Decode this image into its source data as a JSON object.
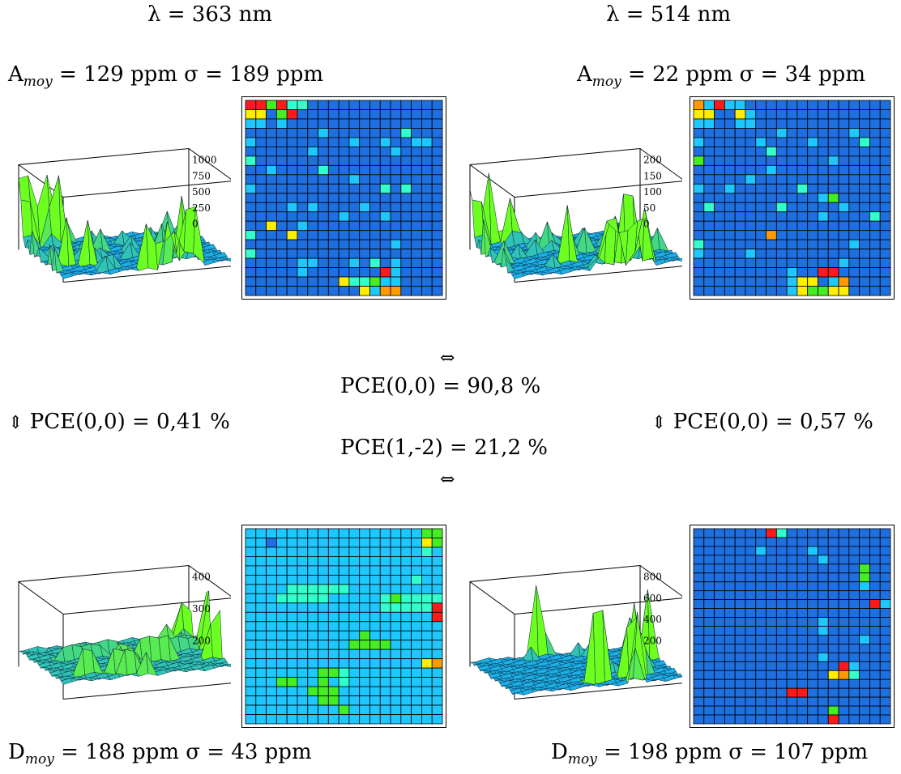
{
  "labels": {
    "lambda_left": "λ = 363 nm",
    "lambda_right": "λ = 514 nm",
    "a_left": {
      "base": "A",
      "sub": "moy",
      "rest": " = 129 ppm σ = 189 ppm"
    },
    "a_right": {
      "base": "A",
      "sub": "moy",
      "rest": " = 22 ppm σ = 34 ppm"
    },
    "d_left": {
      "base": "D",
      "sub": "moy",
      "rest": " = 188 ppm σ = 43 ppm"
    },
    "d_right": {
      "base": "D",
      "sub": "moy",
      "rest": " = 198 ppm σ = 107 ppm"
    },
    "arrow_lr": "⇔",
    "arrow_ud": "⇕",
    "pce_center_top": "PCE(0,0) = 90,8 %",
    "pce_center_bottom": "PCE(1,-2) = 21,2 %",
    "pce_left": "PCE(0,0) = 0,41 %",
    "pce_right": "PCE(0,0) = 0,57 %"
  },
  "colors": {
    "level0": "#1e6fe0",
    "level1": "#1ec8ff",
    "level2": "#33ffcc",
    "level3": "#44ee22",
    "level4": "#ffee00",
    "level5": "#ff9a00",
    "level6": "#ff1a1a",
    "grid": "#000000",
    "surface_low": "#1ab0e8",
    "surface_high": "#6cff20"
  },
  "panels": [
    {
      "id": "A363",
      "axis_ticks": [
        "1000",
        "750",
        "500",
        "250",
        "0"
      ],
      "grid": [
        "6636220000000000000",
        "4403600000000000000",
        "1101000000000000000",
        "0000000100000002000",
        "1000000000100100110",
        "0000001000000010000",
        "2000000000000000000",
        "0010000200000000000",
        "0000000000100000000",
        "1000000000000202000",
        "0000000000000000000",
        "0000101000010000000",
        "0000000001000100000",
        "0040010000000000000",
        "2000400000000000000",
        "0000000000000010000",
        "2000000000000000000",
        "0000011000102010000",
        "0000010000000610000",
        "0000000004223110000",
        "0000000000041550000"
      ]
    },
    {
      "id": "A514",
      "axis_ticks": [
        "200",
        "150",
        "100",
        "50",
        "0"
      ],
      "grid": [
        "5161100000000000000",
        "4400410000000000000",
        "1100110000000000000",
        "0000000010000001000",
        "1000001000010000200",
        "0000000200000000000",
        "3000000000000100000",
        "0000000100000000000",
        "0000010000000000000",
        "1001000000200000000",
        "0000000000001300000",
        "0200000020000010000",
        "0000000000001000020",
        "0000000000000000000",
        "0000000500000000000",
        "2000000000000001000",
        "1000010000000000000",
        "0000000000000010000",
        "0000000001006600000",
        "0000000001440150000",
        "0000000001433440000"
      ]
    },
    {
      "id": "D363",
      "axis_ticks": [
        "400",
        "300",
        "200"
      ],
      "grid": [
        "1111111111111111133",
        "1101111111111111143",
        "1111111111111111121",
        "1111111111111111111",
        "1111111111111111111",
        "1111111111111111211",
        "1111222222111111111",
        "1112222211111232222",
        "1111111111111222226",
        "1111111111111111116",
        "1111111111111111111",
        "1111111111131111111",
        "1111111111333311111",
        "1111111111111111111",
        "1111111111111111145",
        "1111111332111111111",
        "1113311312111111111",
        "1111113331111111111",
        "1111111331111111111",
        "1111111113111111111",
        "1111111111111111111"
      ]
    },
    {
      "id": "D514",
      "axis_ticks": [
        "800",
        "600",
        "400",
        "200"
      ],
      "grid": [
        "0000000620000000000",
        "0000000000000000000",
        "0000001000010000000",
        "0000000000001000000",
        "0000000000000000300",
        "0000000000000000300",
        "0000000000000000100",
        "0000000000000000000",
        "0000000000000000061",
        "0000000000000000000",
        "0000000000001000000",
        "0000000000001000000",
        "0000000000000000100",
        "0000000000000000000",
        "0000000000001000000",
        "0000000000000061000",
        "0000000000000452000",
        "0000000000000000000",
        "0000000006600000000",
        "0000000000000000000",
        "0000000000000300000",
        "0000000000000600000"
      ]
    }
  ]
}
